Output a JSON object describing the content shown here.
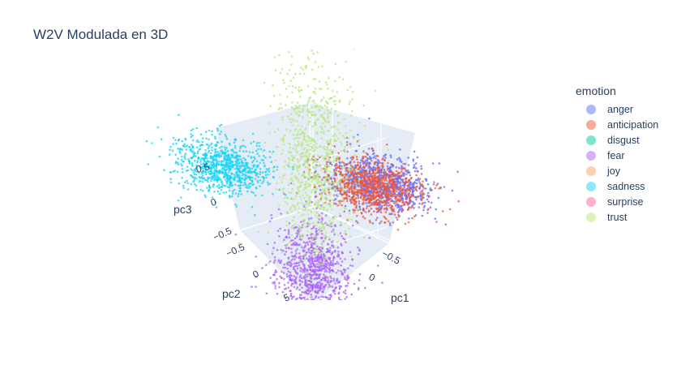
{
  "chart_data": {
    "type": "scatter",
    "subtype": "3d",
    "title": "W2V Modulada en 3D",
    "xlabel": "pc1",
    "ylabel": "pc2",
    "zlabel": "pc3",
    "legend_title": "emotion",
    "legend_position": "right",
    "x_ticks": [
      "−0.5",
      "0"
    ],
    "y_ticks": [
      "−0.5",
      "0",
      "5"
    ],
    "z_ticks": [
      "0.5",
      "0",
      "−0.5"
    ],
    "series": [
      {
        "name": "anger",
        "color": "#636efa"
      },
      {
        "name": "anticipation",
        "color": "#EF553B"
      },
      {
        "name": "disgust",
        "color": "#00cc96"
      },
      {
        "name": "fear",
        "color": "#ab63fa"
      },
      {
        "name": "joy",
        "color": "#FFA15A"
      },
      {
        "name": "sadness",
        "color": "#19d3f3"
      },
      {
        "name": "surprise",
        "color": "#FF6692"
      },
      {
        "name": "trust",
        "color": "#B6E880"
      }
    ],
    "clusters": [
      {
        "series": "sadness",
        "x": -0.7,
        "y": 0.0,
        "z": 0.0,
        "spread": [
          0.15,
          0.15,
          0.12
        ]
      },
      {
        "series": "anger",
        "x": 0.0,
        "y": -0.7,
        "z": 0.0,
        "spread": [
          0.15,
          0.15,
          0.12
        ]
      },
      {
        "series": "anticipation",
        "x": 0.0,
        "y": -0.6,
        "z": 0.0,
        "spread": [
          0.15,
          0.15,
          0.12
        ]
      },
      {
        "series": "fear",
        "x": 0.0,
        "y": 0.0,
        "z": -0.7,
        "spread": [
          0.12,
          0.12,
          0.25
        ]
      },
      {
        "series": "trust",
        "x": 0.0,
        "y": 0.0,
        "z": 0.5,
        "spread": [
          0.12,
          0.12,
          0.55
        ]
      }
    ]
  }
}
